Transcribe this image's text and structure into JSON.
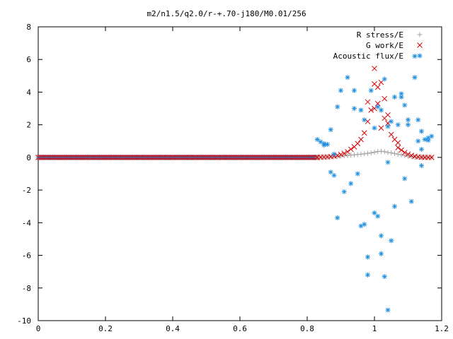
{
  "chart_data": {
    "type": "scatter",
    "title": "m2/n1.5/q2.0/r-+.70-j180/M0.01/256",
    "xlabel": "",
    "ylabel": "",
    "xlim": [
      0,
      1.2
    ],
    "ylim": [
      -10,
      8
    ],
    "x_ticks": [
      0,
      0.2,
      0.4,
      0.6,
      0.8,
      1,
      1.2
    ],
    "x_tick_labels": [
      "0",
      "0.2",
      "0.4",
      "0.6",
      "0.8",
      "1",
      "1.2"
    ],
    "y_ticks": [
      -10,
      -8,
      -6,
      -4,
      -2,
      0,
      2,
      4,
      6,
      8
    ],
    "y_tick_labels": [
      "-10",
      "-8",
      "-6",
      "-4",
      "-2",
      "0",
      "2",
      "4",
      "6",
      "8"
    ],
    "grid": false,
    "legend_position": "top-right",
    "series": [
      {
        "name": "R stress/E",
        "color": "#a0a0a0",
        "marker": "plus",
        "points": [
          [
            0.83,
            0.0
          ],
          [
            0.84,
            0.01
          ],
          [
            0.85,
            0.02
          ],
          [
            0.86,
            0.03
          ],
          [
            0.87,
            0.04
          ],
          [
            0.88,
            0.05
          ],
          [
            0.89,
            0.06
          ],
          [
            0.9,
            0.08
          ],
          [
            0.91,
            0.1
          ],
          [
            0.92,
            0.12
          ],
          [
            0.93,
            0.14
          ],
          [
            0.94,
            0.16
          ],
          [
            0.95,
            0.18
          ],
          [
            0.96,
            0.2
          ],
          [
            0.97,
            0.22
          ],
          [
            0.98,
            0.25
          ],
          [
            0.99,
            0.28
          ],
          [
            1.0,
            0.32
          ],
          [
            1.01,
            0.36
          ],
          [
            1.02,
            0.38
          ],
          [
            1.03,
            0.35
          ],
          [
            1.04,
            0.3
          ],
          [
            1.05,
            0.28
          ],
          [
            1.06,
            0.24
          ],
          [
            1.07,
            0.2
          ],
          [
            1.08,
            0.16
          ],
          [
            1.09,
            0.12
          ],
          [
            1.1,
            0.08
          ],
          [
            1.11,
            0.05
          ],
          [
            1.12,
            0.03
          ],
          [
            1.13,
            0.02
          ],
          [
            1.14,
            0.01
          ],
          [
            1.15,
            0.0
          ],
          [
            1.16,
            0.0
          ],
          [
            1.17,
            0.0
          ]
        ]
      },
      {
        "name": "G work/E",
        "color": "#d40000",
        "marker": "cross",
        "points": [
          [
            0.83,
            0.0
          ],
          [
            0.84,
            0.01
          ],
          [
            0.85,
            0.02
          ],
          [
            0.86,
            0.03
          ],
          [
            0.87,
            0.05
          ],
          [
            0.88,
            0.08
          ],
          [
            0.89,
            0.12
          ],
          [
            0.9,
            0.18
          ],
          [
            0.91,
            0.25
          ],
          [
            0.92,
            0.35
          ],
          [
            0.93,
            0.5
          ],
          [
            0.94,
            0.65
          ],
          [
            0.95,
            0.85
          ],
          [
            0.96,
            1.1
          ],
          [
            0.97,
            1.5
          ],
          [
            0.98,
            2.2
          ],
          [
            0.99,
            2.9
          ],
          [
            0.98,
            3.4
          ],
          [
            1.0,
            3.0
          ],
          [
            1.0,
            4.5
          ],
          [
            1.01,
            4.3
          ],
          [
            1.0,
            5.45
          ],
          [
            1.01,
            3.3
          ],
          [
            1.02,
            1.8
          ],
          [
            1.02,
            4.6
          ],
          [
            1.03,
            2.4
          ],
          [
            1.03,
            3.6
          ],
          [
            1.04,
            2.6
          ],
          [
            1.04,
            2.1
          ],
          [
            1.05,
            1.4
          ],
          [
            1.06,
            1.1
          ],
          [
            1.07,
            0.9
          ],
          [
            1.07,
            0.6
          ],
          [
            1.08,
            0.45
          ],
          [
            1.09,
            0.3
          ],
          [
            1.1,
            0.2
          ],
          [
            1.11,
            0.12
          ],
          [
            1.12,
            0.06
          ],
          [
            1.13,
            0.03
          ],
          [
            1.14,
            0.01
          ],
          [
            1.15,
            0.0
          ],
          [
            1.16,
            0.0
          ],
          [
            1.17,
            0.0
          ]
        ]
      },
      {
        "name": "Acoustic flux/E",
        "color": "#1f8fe0",
        "marker": "star",
        "points": [
          [
            0.83,
            1.1
          ],
          [
            0.84,
            0.95
          ],
          [
            0.85,
            0.85
          ],
          [
            0.85,
            0.75
          ],
          [
            0.86,
            0.8
          ],
          [
            0.87,
            1.7
          ],
          [
            0.87,
            -0.9
          ],
          [
            0.88,
            -1.1
          ],
          [
            0.88,
            0.2
          ],
          [
            0.89,
            3.1
          ],
          [
            0.89,
            -3.7
          ],
          [
            0.9,
            4.1
          ],
          [
            0.91,
            -2.1
          ],
          [
            0.92,
            4.9
          ],
          [
            0.93,
            -1.6
          ],
          [
            0.94,
            4.1
          ],
          [
            0.94,
            3.0
          ],
          [
            0.95,
            -1.0
          ],
          [
            0.96,
            -4.2
          ],
          [
            0.96,
            2.9
          ],
          [
            0.97,
            2.3
          ],
          [
            0.98,
            -7.2
          ],
          [
            0.98,
            -6.1
          ],
          [
            0.97,
            -4.1
          ],
          [
            0.99,
            4.1
          ],
          [
            1.0,
            -3.4
          ],
          [
            1.0,
            1.8
          ],
          [
            1.01,
            -3.6
          ],
          [
            1.02,
            -4.8
          ],
          [
            1.02,
            -5.9
          ],
          [
            1.01,
            3.1
          ],
          [
            1.02,
            2.9
          ],
          [
            1.03,
            4.8
          ],
          [
            1.03,
            -7.3
          ],
          [
            1.04,
            -9.35
          ],
          [
            1.04,
            -0.3
          ],
          [
            1.04,
            1.9
          ],
          [
            1.05,
            2.2
          ],
          [
            1.05,
            -5.1
          ],
          [
            1.06,
            -3.0
          ],
          [
            1.06,
            3.7
          ],
          [
            1.07,
            2.0
          ],
          [
            1.08,
            3.9
          ],
          [
            1.08,
            3.7
          ],
          [
            1.09,
            3.2
          ],
          [
            1.09,
            -1.3
          ],
          [
            1.1,
            2.0
          ],
          [
            1.1,
            2.3
          ],
          [
            1.11,
            -2.7
          ],
          [
            1.12,
            6.2
          ],
          [
            1.13,
            2.3
          ],
          [
            1.14,
            1.6
          ],
          [
            1.14,
            0.5
          ],
          [
            1.15,
            1.1
          ],
          [
            1.16,
            1.2
          ],
          [
            1.17,
            1.3
          ],
          [
            1.12,
            4.9
          ],
          [
            1.13,
            1.0
          ],
          [
            1.14,
            -0.5
          ],
          [
            1.16,
            1.05
          ]
        ]
      }
    ]
  }
}
